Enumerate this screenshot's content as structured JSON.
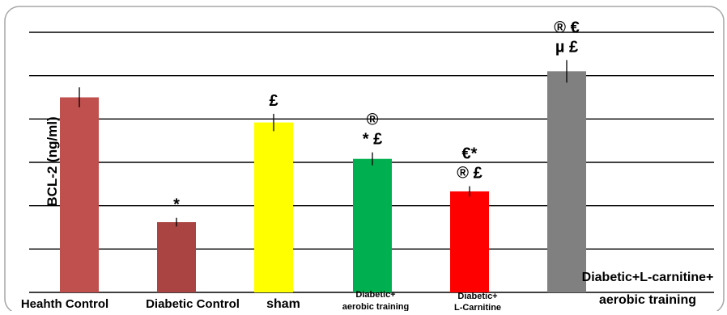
{
  "chart_data": {
    "type": "bar",
    "ylabel": "BCL-2 (ng/ml)",
    "ylim": [
      0,
      6
    ],
    "grid": true,
    "categories": [
      "Heahth Control",
      "Diabetic Control",
      "sham",
      "Diabetic+ aerobic training",
      "Diabetic+ L-Carnitine",
      "Diabetic+L-carnitine+ aerobic training"
    ],
    "values": [
      4.5,
      1.62,
      3.92,
      3.08,
      2.33,
      5.1
    ],
    "errors": [
      0.23,
      0.1,
      0.2,
      0.15,
      0.12,
      0.26
    ],
    "colors": [
      "#c0504d",
      "#a94442",
      "#ffff00",
      "#00b050",
      "#ff0000",
      "#808080"
    ],
    "annotations": [
      [],
      [
        "*"
      ],
      [
        "£"
      ],
      [
        "®",
        "* £"
      ],
      [
        "€*",
        "® £"
      ],
      [
        "® €",
        "µ £"
      ]
    ]
  }
}
